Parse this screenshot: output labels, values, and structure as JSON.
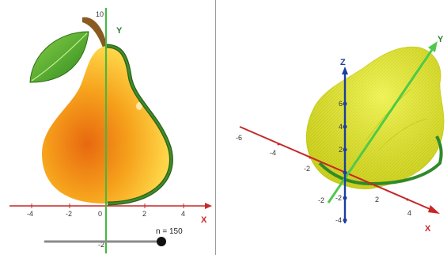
{
  "view2d": {
    "x_ticks": [
      "-4",
      "-2",
      "0",
      "2",
      "4"
    ],
    "y_ticks": [
      "10",
      "-2"
    ],
    "x_label": "X",
    "y_label": "Y"
  },
  "slider": {
    "name": "n",
    "label": "n = 150",
    "value": 150
  },
  "view3d": {
    "x_ticks": [
      "-6",
      "-4",
      "-2",
      "2",
      "4"
    ],
    "y_ticks": [
      "-2"
    ],
    "z_ticks": [
      "6",
      "4",
      "2",
      "-2",
      "-4"
    ],
    "x_label": "X",
    "y_label": "Y",
    "z_label": "Z"
  },
  "colors": {
    "x_axis": "#c62828",
    "y_axis": "#2e7d32",
    "z_axis": "#1a3f9e",
    "pear_outline": "#2f5e1c",
    "surface": "#e6ea2a"
  }
}
